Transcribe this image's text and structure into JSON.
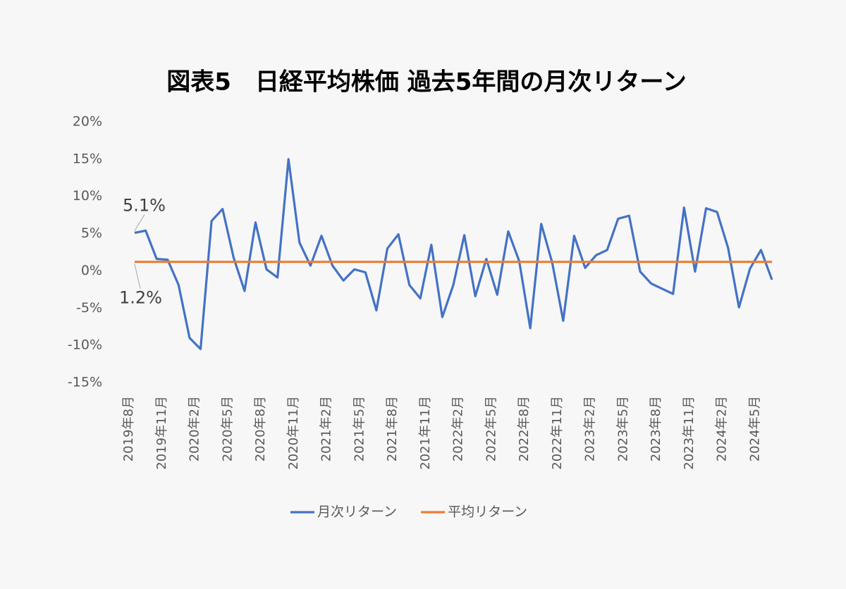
{
  "chart_data": {
    "type": "line",
    "title": "図表5　日経平均株価 過去5年間の月次リターン",
    "categories": [
      "2019年8月",
      null,
      null,
      "2019年11月",
      null,
      null,
      "2020年2月",
      null,
      null,
      "2020年5月",
      null,
      null,
      "2020年8月",
      null,
      null,
      "2020年11月",
      null,
      null,
      "2021年2月",
      null,
      null,
      "2021年5月",
      null,
      null,
      "2021年8月",
      null,
      null,
      "2021年11月",
      null,
      null,
      "2022年2月",
      null,
      null,
      "2022年5月",
      null,
      null,
      "2022年8月",
      null,
      null,
      "2022年11月",
      null,
      null,
      "2023年2月",
      null,
      null,
      "2023年5月",
      null,
      null,
      "2023年8月",
      null,
      null,
      "2023年11月",
      null,
      null,
      "2024年2月",
      null,
      null,
      "2024年5月",
      null
    ],
    "series": [
      {
        "name": "月次リターン",
        "color": "#4472c4",
        "values": [
          5.1,
          5.4,
          1.6,
          1.5,
          -1.9,
          -9.0,
          -10.5,
          6.7,
          8.3,
          1.8,
          -2.7,
          6.5,
          0.2,
          -0.9,
          15.0,
          3.8,
          0.7,
          4.7,
          0.7,
          -1.3,
          0.2,
          -0.2,
          -5.3,
          3.0,
          4.9,
          -1.9,
          -3.7,
          3.5,
          -6.2,
          -1.9,
          4.8,
          -3.4,
          1.6,
          -3.2,
          5.3,
          1.3,
          -7.7,
          6.3,
          1.1,
          -6.7,
          4.7,
          0.4,
          2.1,
          2.8,
          7.0,
          7.4,
          -0.1,
          -1.7,
          -2.4,
          -3.1,
          8.5,
          -0.1,
          8.4,
          7.9,
          3.1,
          -4.9,
          0.3,
          2.8,
          -1.2
        ],
        "value_labels": [
          "5.1%",
          null,
          null,
          null,
          null,
          null,
          null,
          null,
          null,
          null,
          null,
          null,
          null,
          null,
          null,
          null,
          null,
          null,
          null,
          null,
          null,
          null,
          null,
          null,
          null,
          null,
          null,
          null,
          null,
          null,
          null,
          null,
          null,
          null,
          null,
          null,
          null,
          null,
          null,
          null,
          null,
          null,
          null,
          null,
          null,
          null,
          null,
          null,
          null,
          null,
          null,
          null,
          null,
          null,
          null,
          null,
          null,
          null,
          null
        ]
      },
      {
        "name": "平均リターン",
        "color": "#ed7d31",
        "values": [
          1.2,
          1.2,
          1.2,
          1.2,
          1.2,
          1.2,
          1.2,
          1.2,
          1.2,
          1.2,
          1.2,
          1.2,
          1.2,
          1.2,
          1.2,
          1.2,
          1.2,
          1.2,
          1.2,
          1.2,
          1.2,
          1.2,
          1.2,
          1.2,
          1.2,
          1.2,
          1.2,
          1.2,
          1.2,
          1.2,
          1.2,
          1.2,
          1.2,
          1.2,
          1.2,
          1.2,
          1.2,
          1.2,
          1.2,
          1.2,
          1.2,
          1.2,
          1.2,
          1.2,
          1.2,
          1.2,
          1.2,
          1.2,
          1.2,
          1.2,
          1.2,
          1.2,
          1.2,
          1.2,
          1.2,
          1.2,
          1.2,
          1.2,
          1.2
        ],
        "value_labels": [
          "1.2%",
          null,
          null,
          null,
          null,
          null,
          null,
          null,
          null,
          null,
          null,
          null,
          null,
          null,
          null,
          null,
          null,
          null,
          null,
          null,
          null,
          null,
          null,
          null,
          null,
          null,
          null,
          null,
          null,
          null,
          null,
          null,
          null,
          null,
          null,
          null,
          null,
          null,
          null,
          null,
          null,
          null,
          null,
          null,
          null,
          null,
          null,
          null,
          null,
          null,
          null,
          null,
          null,
          null,
          null,
          null,
          null,
          null,
          null
        ]
      }
    ],
    "ylim": [
      -15,
      20
    ],
    "yticks": [
      {
        "value": -15,
        "label": "-15%"
      },
      {
        "value": -10,
        "label": "-10%"
      },
      {
        "value": -5,
        "label": "-5%"
      },
      {
        "value": 0,
        "label": "0%"
      },
      {
        "value": 5,
        "label": "5%"
      },
      {
        "value": 10,
        "label": "10%"
      },
      {
        "value": 15,
        "label": "15%"
      },
      {
        "value": 20,
        "label": "20%"
      }
    ],
    "grid": false,
    "legend": "bottom"
  }
}
